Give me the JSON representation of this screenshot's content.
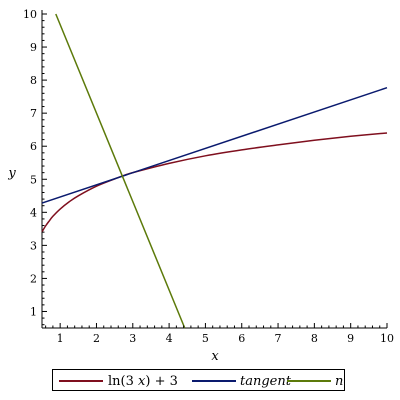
{
  "chart_data": {
    "type": "line",
    "title": "",
    "xlabel": "x",
    "ylabel": "y",
    "xlim": [
      0.5,
      10
    ],
    "ylim": [
      0.5,
      10
    ],
    "x_ticks": [
      "1",
      "2",
      "3",
      "4",
      "5",
      "6",
      "7",
      "8",
      "9",
      "10"
    ],
    "y_ticks": [
      "1",
      "2",
      "3",
      "4",
      "5",
      "6",
      "7",
      "8",
      "9",
      "10"
    ],
    "grid": false,
    "legend_position": "bottom",
    "series": [
      {
        "name": "ln(3 x) + 3",
        "color": "#7f0f1e",
        "x": [
          0.5,
          0.6,
          0.7,
          0.8,
          1.0,
          1.25,
          1.5,
          2.0,
          2.5,
          2.72,
          3.0,
          4.0,
          5.0,
          6.0,
          7.0,
          8.0,
          9.0,
          10.0
        ],
        "y": [
          3.41,
          3.59,
          3.74,
          3.88,
          4.1,
          4.32,
          4.5,
          4.79,
          5.01,
          5.1,
          5.2,
          5.48,
          5.71,
          5.89,
          6.04,
          6.18,
          6.3,
          6.4
        ]
      },
      {
        "name": "tangent",
        "color": "#0a1a6e",
        "x": [
          0.5,
          10.0
        ],
        "y": [
          4.28,
          7.77
        ]
      },
      {
        "name": "normal",
        "color": "#5c7a0a",
        "x": [
          0.88,
          4.43
        ],
        "y": [
          10.0,
          0.5
        ]
      }
    ]
  },
  "legend": {
    "entries": [
      {
        "label_main": "ln(3 ",
        "label_var": "x",
        "label_tail": ") + 3",
        "color": "#7f0f1e"
      },
      {
        "label": "tangent",
        "color": "#0a1a6e"
      },
      {
        "label": "normal",
        "color": "#5c7a0a"
      }
    ]
  }
}
